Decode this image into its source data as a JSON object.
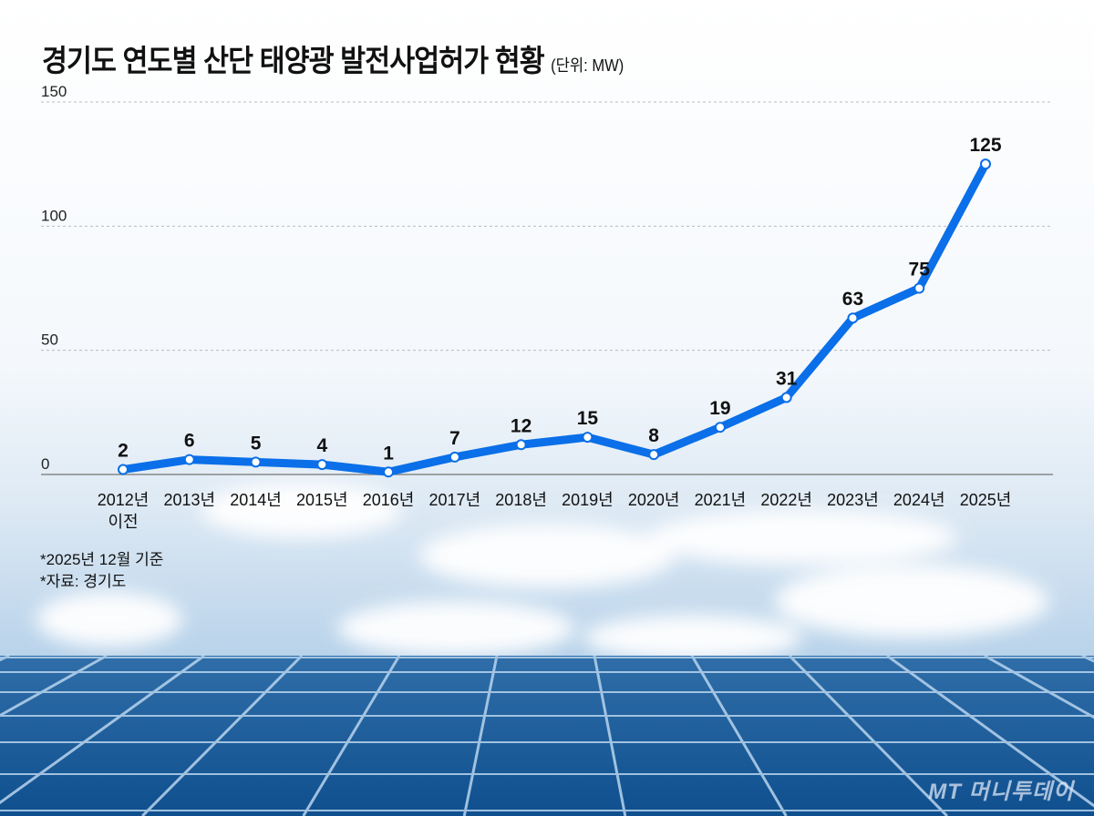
{
  "title": "경기도 연도별 산단 태양광 발전사업허가 현황",
  "unit": "(단위: MW)",
  "notes": [
    "*2025년 12월 기준",
    "*자료: 경기도"
  ],
  "logo": "MT 머니투데이",
  "colors": {
    "line": "#0a6fe8",
    "marker_fill": "#ffffff",
    "grid": "#bbbbbb"
  },
  "chart_data": {
    "type": "line",
    "categories": [
      "2012년\n이전",
      "2013년",
      "2014년",
      "2015년",
      "2016년",
      "2017년",
      "2018년",
      "2019년",
      "2020년",
      "2021년",
      "2022년",
      "2023년",
      "2024년",
      "2025년"
    ],
    "values": [
      2,
      6,
      5,
      4,
      1,
      7,
      12,
      15,
      8,
      19,
      31,
      63,
      75,
      125
    ],
    "ylim": [
      0,
      150
    ],
    "yticks": [
      0,
      50,
      100,
      150
    ],
    "grid": true,
    "data_labels": true
  }
}
